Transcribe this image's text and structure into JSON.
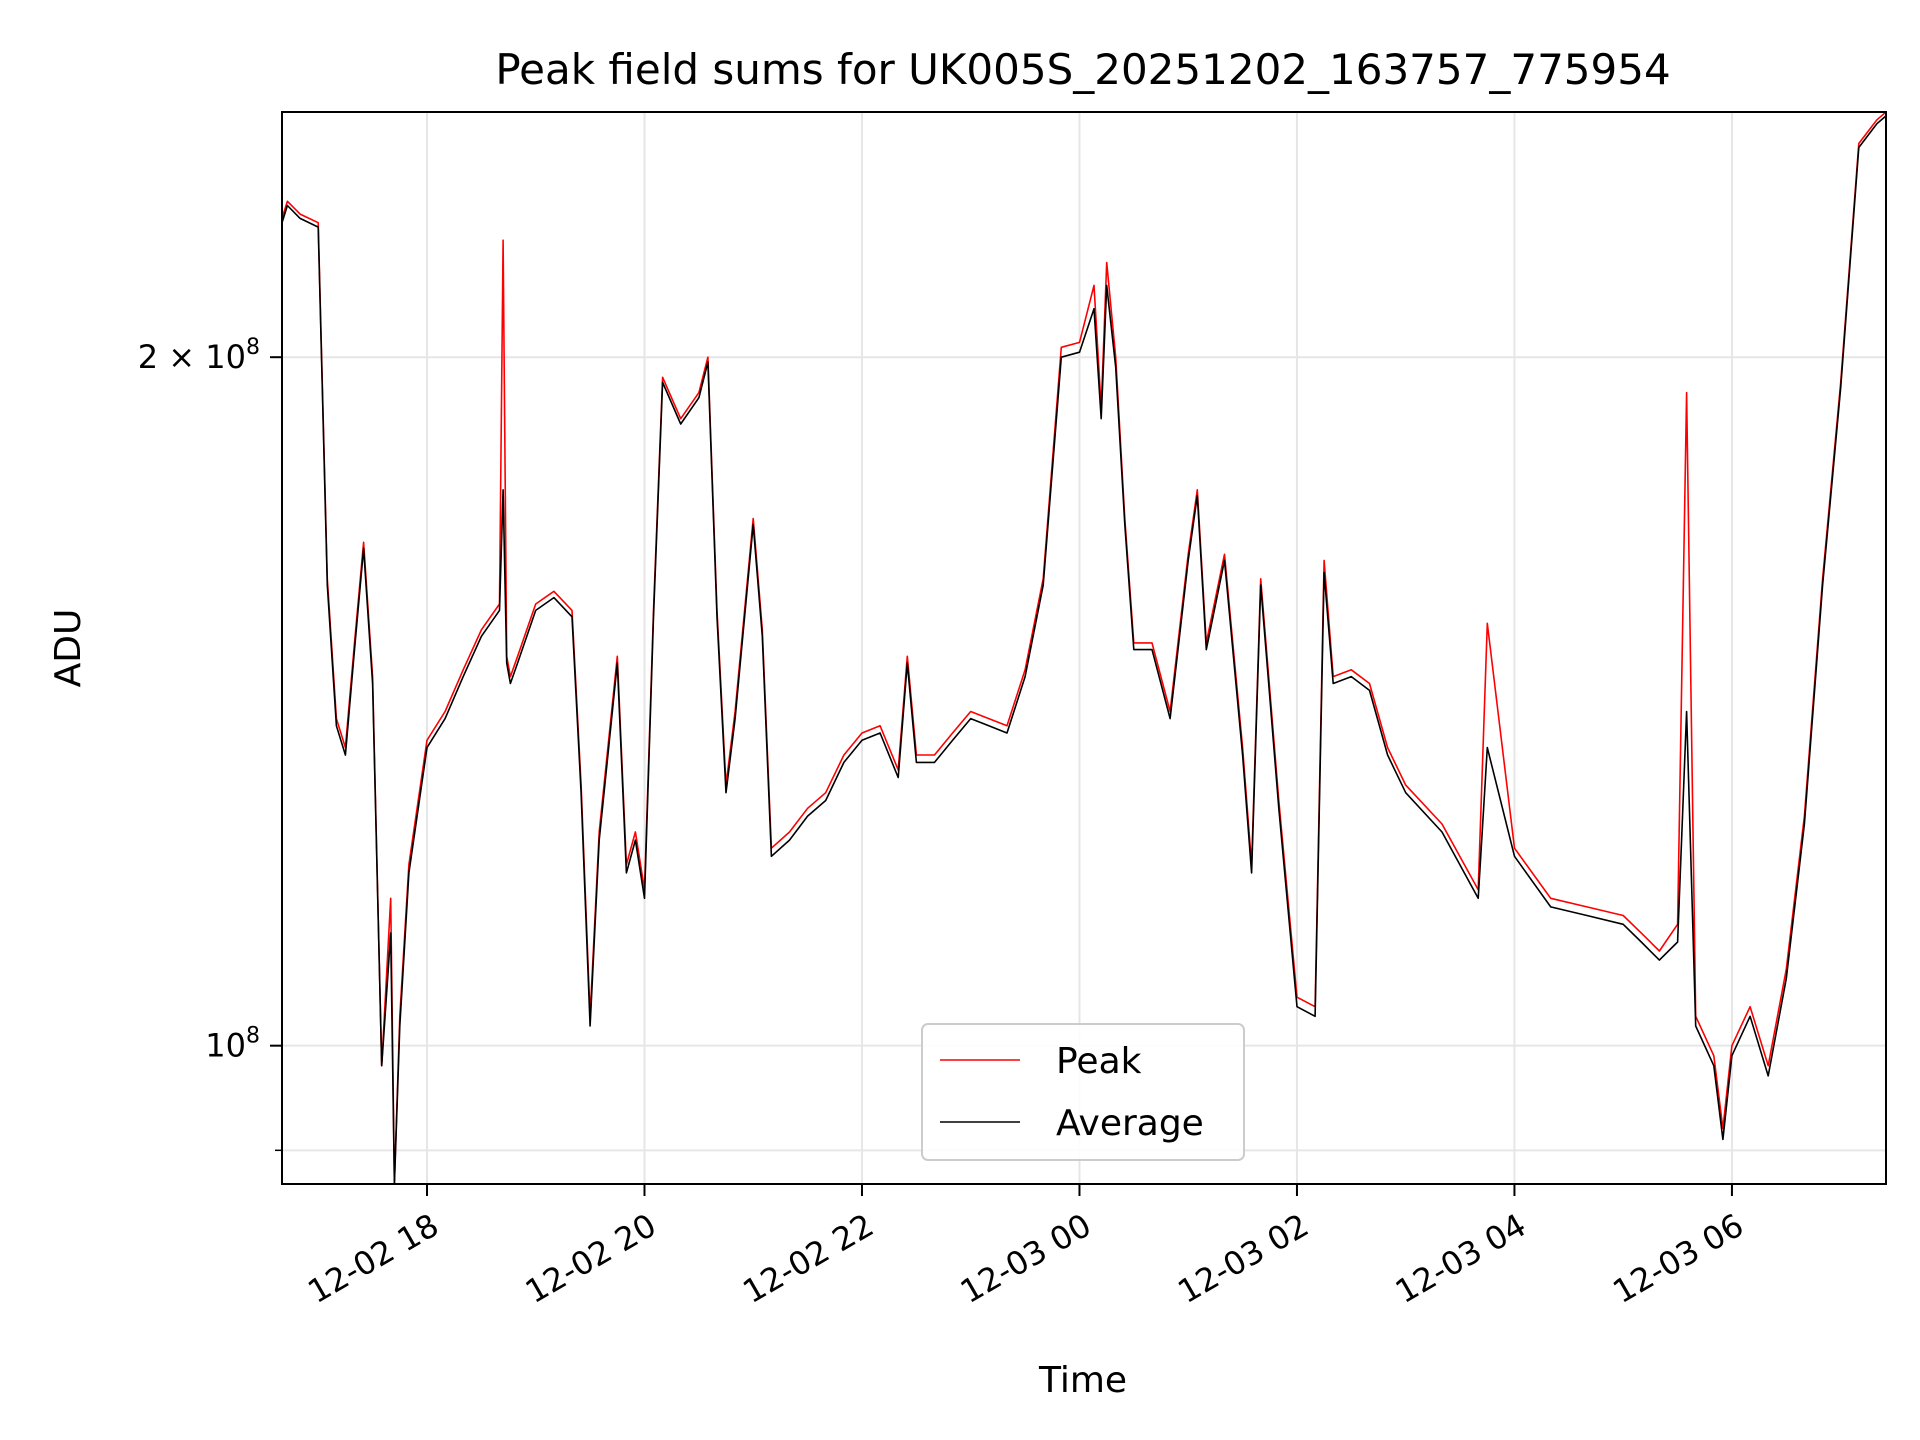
{
  "chart_data": {
    "type": "line",
    "title": "Peak field sums for UK005S_20251202_163757_775954",
    "xlabel": "Time",
    "ylabel": "ADU",
    "y_scale": "log",
    "grid": true,
    "legend_position": "lower center",
    "xlim": [
      "2025-12-02 16:40",
      "2025-12-03 07:25"
    ],
    "ylim": [
      87000000,
      256000000
    ],
    "x_ticks": [
      {
        "value": "2025-12-02 18:00",
        "label": "12-02 18"
      },
      {
        "value": "2025-12-02 20:00",
        "label": "12-02 20"
      },
      {
        "value": "2025-12-02 22:00",
        "label": "12-02 22"
      },
      {
        "value": "2025-12-03 00:00",
        "label": "12-03 00"
      },
      {
        "value": "2025-12-03 02:00",
        "label": "12-03 02"
      },
      {
        "value": "2025-12-03 04:00",
        "label": "12-03 04"
      },
      {
        "value": "2025-12-03 06:00",
        "label": "12-03 06"
      }
    ],
    "y_ticks": [
      {
        "value": 100000000,
        "base": "10",
        "exp": "8"
      },
      {
        "value": 200000000,
        "coef": "2",
        "base": "10",
        "exp": "8"
      }
    ],
    "series": [
      {
        "name": "Peak",
        "color": "#ff0000",
        "x": [
          "2025-12-02 16:40",
          "2025-12-02 16:43",
          "2025-12-02 16:50",
          "2025-12-02 17:00",
          "2025-12-02 17:05",
          "2025-12-02 17:10",
          "2025-12-02 17:15",
          "2025-12-02 17:20",
          "2025-12-02 17:25",
          "2025-12-02 17:30",
          "2025-12-02 17:35",
          "2025-12-02 17:40",
          "2025-12-02 17:42",
          "2025-12-02 17:45",
          "2025-12-02 17:50",
          "2025-12-02 18:00",
          "2025-12-02 18:10",
          "2025-12-02 18:20",
          "2025-12-02 18:30",
          "2025-12-02 18:40",
          "2025-12-02 18:42",
          "2025-12-02 18:44",
          "2025-12-02 18:46",
          "2025-12-02 18:50",
          "2025-12-02 19:00",
          "2025-12-02 19:10",
          "2025-12-02 19:20",
          "2025-12-02 19:25",
          "2025-12-02 19:30",
          "2025-12-02 19:35",
          "2025-12-02 19:45",
          "2025-12-02 19:50",
          "2025-12-02 19:55",
          "2025-12-02 20:00",
          "2025-12-02 20:05",
          "2025-12-02 20:10",
          "2025-12-02 20:20",
          "2025-12-02 20:30",
          "2025-12-02 20:35",
          "2025-12-02 20:40",
          "2025-12-02 20:45",
          "2025-12-02 20:50",
          "2025-12-02 21:00",
          "2025-12-02 21:05",
          "2025-12-02 21:10",
          "2025-12-02 21:20",
          "2025-12-02 21:30",
          "2025-12-02 21:40",
          "2025-12-02 21:50",
          "2025-12-02 22:00",
          "2025-12-02 22:10",
          "2025-12-02 22:20",
          "2025-12-02 22:25",
          "2025-12-02 22:30",
          "2025-12-02 22:40",
          "2025-12-02 22:50",
          "2025-12-02 23:00",
          "2025-12-02 23:10",
          "2025-12-02 23:20",
          "2025-12-02 23:30",
          "2025-12-02 23:40",
          "2025-12-02 23:50",
          "2025-12-03 00:00",
          "2025-12-03 00:08",
          "2025-12-03 00:12",
          "2025-12-03 00:15",
          "2025-12-03 00:20",
          "2025-12-03 00:25",
          "2025-12-03 00:30",
          "2025-12-03 00:40",
          "2025-12-03 00:50",
          "2025-12-03 01:00",
          "2025-12-03 01:05",
          "2025-12-03 01:10",
          "2025-12-03 01:20",
          "2025-12-03 01:30",
          "2025-12-03 01:35",
          "2025-12-03 01:40",
          "2025-12-03 01:50",
          "2025-12-03 02:00",
          "2025-12-03 02:10",
          "2025-12-03 02:15",
          "2025-12-03 02:20",
          "2025-12-03 02:30",
          "2025-12-03 02:40",
          "2025-12-03 02:50",
          "2025-12-03 03:00",
          "2025-12-03 03:20",
          "2025-12-03 03:40",
          "2025-12-03 03:45",
          "2025-12-03 04:00",
          "2025-12-03 04:20",
          "2025-12-03 04:40",
          "2025-12-03 05:00",
          "2025-12-03 05:10",
          "2025-12-03 05:20",
          "2025-12-03 05:30",
          "2025-12-03 05:35",
          "2025-12-03 05:40",
          "2025-12-03 05:50",
          "2025-12-03 05:55",
          "2025-12-03 06:00",
          "2025-12-03 06:10",
          "2025-12-03 06:20",
          "2025-12-03 06:30",
          "2025-12-03 06:40",
          "2025-12-03 06:50",
          "2025-12-03 07:00",
          "2025-12-03 07:10",
          "2025-12-03 07:20",
          "2025-12-03 07:25"
        ],
        "y": [
          230000000,
          234000000,
          231000000,
          229000000,
          160000000,
          139000000,
          135000000,
          150000000,
          166000000,
          145000000,
          98000000,
          116000000,
          87000000,
          103000000,
          120000000,
          136000000,
          140000000,
          146000000,
          152000000,
          156000000,
          225000000,
          148000000,
          145000000,
          148000000,
          156000000,
          158000000,
          155000000,
          130000000,
          103000000,
          124000000,
          148000000,
          120000000,
          124000000,
          117000000,
          155000000,
          196000000,
          188000000,
          193000000,
          200000000,
          155000000,
          130000000,
          140000000,
          170000000,
          152000000,
          122000000,
          124000000,
          127000000,
          129000000,
          134000000,
          137000000,
          138000000,
          132000000,
          148000000,
          134000000,
          134000000,
          137000000,
          140000000,
          139000000,
          138000000,
          146000000,
          160000000,
          202000000,
          203000000,
          215000000,
          190000000,
          220000000,
          200000000,
          170000000,
          150000000,
          150000000,
          140000000,
          164000000,
          175000000,
          150000000,
          164000000,
          135000000,
          120000000,
          160000000,
          128000000,
          105000000,
          104000000,
          163000000,
          145000000,
          146000000,
          144000000,
          135000000,
          130000000,
          125000000,
          117000000,
          153000000,
          122000000,
          116000000,
          115000000,
          114000000,
          112000000,
          110000000,
          113000000,
          193000000,
          103000000,
          99000000,
          92000000,
          100000000,
          104000000,
          98000000,
          108000000,
          126000000,
          160000000,
          195000000,
          248000000,
          254000000,
          256000000
        ]
      },
      {
        "name": "Average",
        "color": "#000000",
        "x": [
          "2025-12-02 16:40",
          "2025-12-02 16:43",
          "2025-12-02 16:50",
          "2025-12-02 17:00",
          "2025-12-02 17:05",
          "2025-12-02 17:10",
          "2025-12-02 17:15",
          "2025-12-02 17:20",
          "2025-12-02 17:25",
          "2025-12-02 17:30",
          "2025-12-02 17:35",
          "2025-12-02 17:40",
          "2025-12-02 17:42",
          "2025-12-02 17:45",
          "2025-12-02 17:50",
          "2025-12-02 18:00",
          "2025-12-02 18:10",
          "2025-12-02 18:20",
          "2025-12-02 18:30",
          "2025-12-02 18:40",
          "2025-12-02 18:42",
          "2025-12-02 18:44",
          "2025-12-02 18:46",
          "2025-12-02 18:50",
          "2025-12-02 19:00",
          "2025-12-02 19:10",
          "2025-12-02 19:20",
          "2025-12-02 19:25",
          "2025-12-02 19:30",
          "2025-12-02 19:35",
          "2025-12-02 19:45",
          "2025-12-02 19:50",
          "2025-12-02 19:55",
          "2025-12-02 20:00",
          "2025-12-02 20:05",
          "2025-12-02 20:10",
          "2025-12-02 20:20",
          "2025-12-02 20:30",
          "2025-12-02 20:35",
          "2025-12-02 20:40",
          "2025-12-02 20:45",
          "2025-12-02 20:50",
          "2025-12-02 21:00",
          "2025-12-02 21:05",
          "2025-12-02 21:10",
          "2025-12-02 21:20",
          "2025-12-02 21:30",
          "2025-12-02 21:40",
          "2025-12-02 21:50",
          "2025-12-02 22:00",
          "2025-12-02 22:10",
          "2025-12-02 22:20",
          "2025-12-02 22:25",
          "2025-12-02 22:30",
          "2025-12-02 22:40",
          "2025-12-02 22:50",
          "2025-12-02 23:00",
          "2025-12-02 23:10",
          "2025-12-02 23:20",
          "2025-12-02 23:30",
          "2025-12-02 23:40",
          "2025-12-02 23:50",
          "2025-12-03 00:00",
          "2025-12-03 00:08",
          "2025-12-03 00:12",
          "2025-12-03 00:15",
          "2025-12-03 00:20",
          "2025-12-03 00:25",
          "2025-12-03 00:30",
          "2025-12-03 00:40",
          "2025-12-03 00:50",
          "2025-12-03 01:00",
          "2025-12-03 01:05",
          "2025-12-03 01:10",
          "2025-12-03 01:20",
          "2025-12-03 01:30",
          "2025-12-03 01:35",
          "2025-12-03 01:40",
          "2025-12-03 01:50",
          "2025-12-03 02:00",
          "2025-12-03 02:10",
          "2025-12-03 02:15",
          "2025-12-03 02:20",
          "2025-12-03 02:30",
          "2025-12-03 02:40",
          "2025-12-03 02:50",
          "2025-12-03 03:00",
          "2025-12-03 03:20",
          "2025-12-03 03:40",
          "2025-12-03 03:45",
          "2025-12-03 04:00",
          "2025-12-03 04:20",
          "2025-12-03 04:40",
          "2025-12-03 05:00",
          "2025-12-03 05:10",
          "2025-12-03 05:20",
          "2025-12-03 05:30",
          "2025-12-03 05:35",
          "2025-12-03 05:40",
          "2025-12-03 05:50",
          "2025-12-03 05:55",
          "2025-12-03 06:00",
          "2025-12-03 06:10",
          "2025-12-03 06:20",
          "2025-12-03 06:30",
          "2025-12-03 06:40",
          "2025-12-03 06:50",
          "2025-12-03 07:00",
          "2025-12-03 07:10",
          "2025-12-03 07:20",
          "2025-12-03 07:25"
        ],
        "y": [
          229000000,
          233000000,
          230000000,
          228000000,
          159000000,
          138000000,
          134000000,
          149000000,
          165000000,
          144000000,
          98000000,
          112000000,
          87000000,
          102000000,
          119000000,
          135000000,
          139000000,
          145000000,
          151000000,
          155000000,
          175000000,
          147000000,
          144000000,
          147000000,
          155000000,
          157000000,
          154000000,
          129000000,
          102000000,
          123000000,
          147000000,
          119000000,
          123000000,
          116000000,
          154000000,
          195000000,
          187000000,
          192000000,
          199000000,
          154000000,
          129000000,
          139000000,
          169000000,
          151000000,
          121000000,
          123000000,
          126000000,
          128000000,
          133000000,
          136000000,
          137000000,
          131000000,
          147000000,
          133000000,
          133000000,
          136000000,
          139000000,
          138000000,
          137000000,
          145000000,
          159000000,
          200000000,
          201000000,
          210000000,
          188000000,
          215000000,
          198000000,
          169000000,
          149000000,
          149000000,
          139000000,
          163000000,
          174000000,
          149000000,
          163000000,
          134000000,
          119000000,
          159000000,
          127000000,
          104000000,
          103000000,
          161000000,
          144000000,
          145000000,
          143000000,
          134000000,
          129000000,
          124000000,
          116000000,
          135000000,
          121000000,
          115000000,
          114000000,
          113000000,
          111000000,
          109000000,
          111000000,
          140000000,
          102000000,
          98000000,
          91000000,
          99000000,
          103000000,
          97000000,
          107000000,
          125000000,
          159000000,
          194000000,
          247000000,
          253000000,
          255000000
        ]
      }
    ]
  }
}
